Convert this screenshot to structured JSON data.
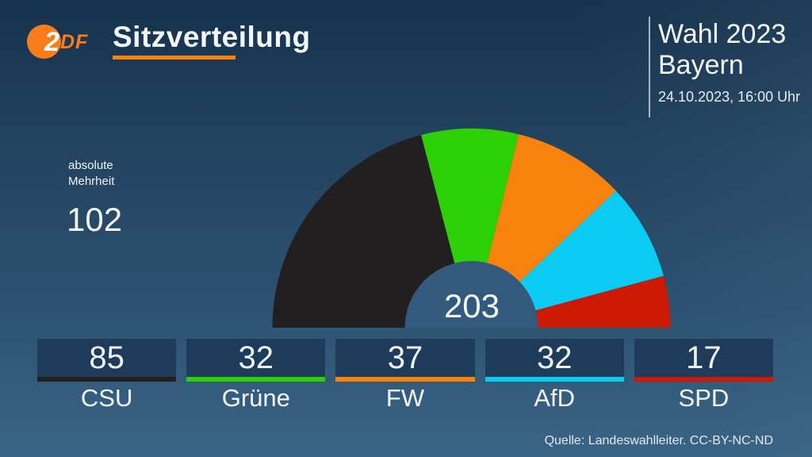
{
  "brand": {
    "logo_text_2": "2",
    "logo_text_df": "DF",
    "logo_color": "#fa7d19"
  },
  "header": {
    "title": "Sitzverteilung",
    "underline_color": "#f8820e"
  },
  "election_info": {
    "line1": "Wahl 2023",
    "line2": "Bayern",
    "timestamp": "24.10.2023, 16:00 Uhr"
  },
  "majority": {
    "label_line1": "absolute",
    "label_line2": "Mehrheit",
    "value": "102"
  },
  "chart_data": {
    "type": "hemicycle",
    "title": "Sitzverteilung",
    "total_seats": 203,
    "total_label": "203",
    "majority_seats": 102,
    "inner_hole_color": "#335a7d",
    "geometry": {
      "cx": 594.5,
      "cy": 413,
      "outer_radius": 251,
      "inner_radius": 84
    },
    "series": [
      {
        "name": "CSU",
        "seats": 85,
        "color": "#221f20"
      },
      {
        "name": "Grüne",
        "seats": 32,
        "color": "#2cd005"
      },
      {
        "name": "FW",
        "seats": 37,
        "color": "#f8820e"
      },
      {
        "name": "AfD",
        "seats": 32,
        "color": "#0accf2"
      },
      {
        "name": "SPD",
        "seats": 17,
        "color": "#cc1a05"
      }
    ]
  },
  "footer": {
    "source": "Quelle: Landeswahlleiter. CC-BY-NC-ND"
  }
}
